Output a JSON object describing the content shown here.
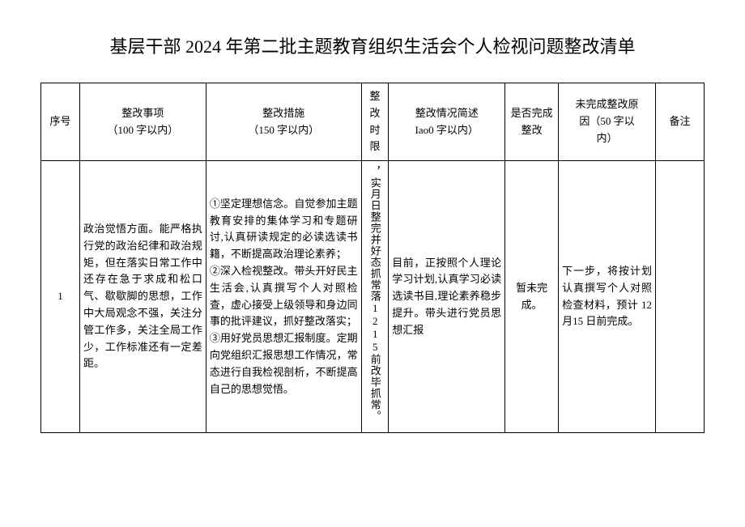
{
  "title": "基层干部 2024 年第二批主题教育组织生活会个人检视问题整改清单",
  "columns": {
    "seq": "序号",
    "item": "整改事项\n（100 字以内）",
    "measure": "整改措施\n（150 字以内）",
    "deadline": "整改\n时限",
    "status": "整改情况简述\nIao0 字以内）",
    "complete": "是否完成\n整改",
    "reason": "未完成整改原\n因（50 字以\n内）",
    "remark": "备注"
  },
  "rows": [
    {
      "seq": "1",
      "item": "政治觉悟方面。能严格执行党的政治纪律和政治规矩，但在落实日常工作中还存在急于求成和松口气、歇歇脚的思想，工作中大局观念不强，关注分管工作多，关注全局工作少，工作标准还有一定差距。",
      "measure": "①坚定理想信念。自觉参加主题教育安排的集体学习和专题研讨,认真研读规定的必读选读书籍，不断提高政治理论素养；\n②深入检视整改。带头开好民主生活会,认真撰写个人对照检查，虚心接受上级领导和身边同事的批评建议，抓好整改落实；\n③用好党员思想汇报制度。定期向党组织汇报思想工作情况，常态进行自我检视剖析，不断提高自己的思想觉悟。",
      "deadline": "，实月日整完并好态抓常落1215前改毕抓常。",
      "status": "目前，正按照个人理论学习计划,认真学习必读选读书目,理论素养稳步提升。带头进行党员思想汇报",
      "complete": "暂未完成。",
      "reason": "下一步，将按计划认真撰写个人对照检查材料，预计 12 月15 日前完成。",
      "remark": ""
    }
  ]
}
